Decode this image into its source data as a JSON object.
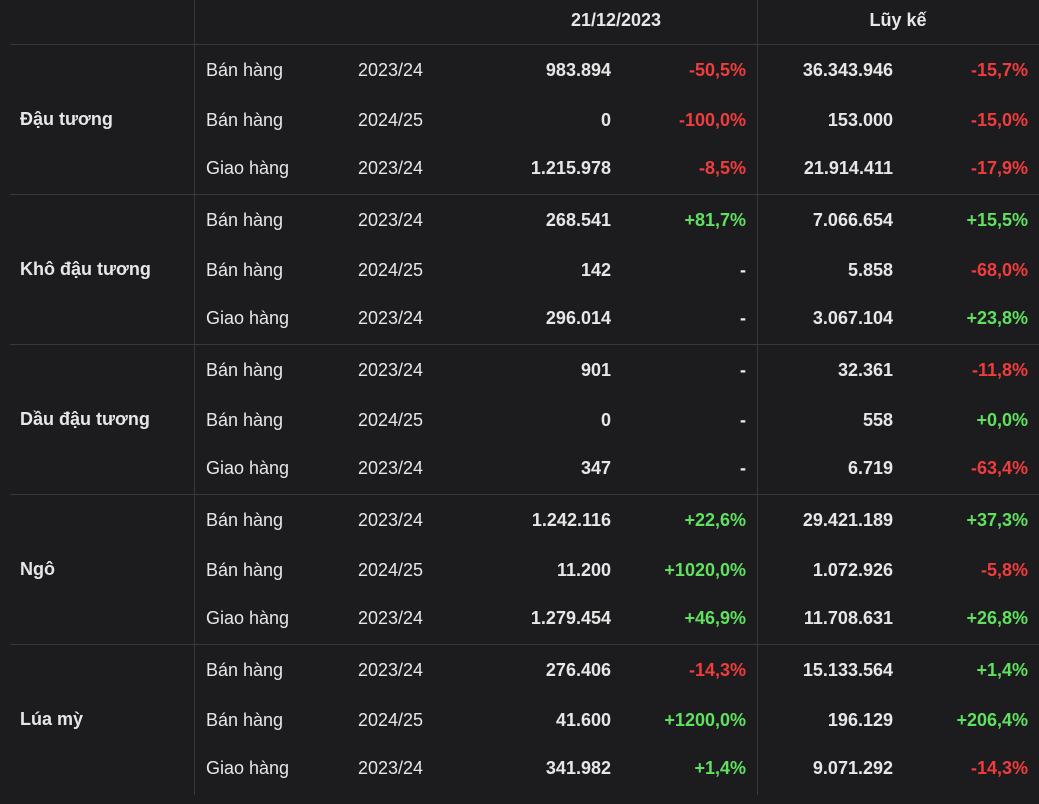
{
  "header": {
    "date": "21/12/2023",
    "cumulative": "Lũy kế"
  },
  "groups": [
    {
      "name": "Đậu tương",
      "rows": [
        [
          "Bán hàng",
          "2023/24",
          "983.894",
          "-50,5%",
          "36.343.946",
          "-15,7%"
        ],
        [
          "Bán hàng",
          "2024/25",
          "0",
          "-100,0%",
          "153.000",
          "-15,0%"
        ],
        [
          "Giao hàng",
          "2023/24",
          "1.215.978",
          "-8,5%",
          "21.914.411",
          "-17,9%"
        ]
      ]
    },
    {
      "name": "Khô đậu tương",
      "rows": [
        [
          "Bán hàng",
          "2023/24",
          "268.541",
          "+81,7%",
          "7.066.654",
          "+15,5%"
        ],
        [
          "Bán hàng",
          "2024/25",
          "142",
          "-",
          "5.858",
          "-68,0%"
        ],
        [
          "Giao hàng",
          "2023/24",
          "296.014",
          "-",
          "3.067.104",
          "+23,8%"
        ]
      ]
    },
    {
      "name": "Dầu đậu tương",
      "rows": [
        [
          "Bán hàng",
          "2023/24",
          "901",
          "-",
          "32.361",
          "-11,8%"
        ],
        [
          "Bán hàng",
          "2024/25",
          "0",
          "-",
          "558",
          "+0,0%"
        ],
        [
          "Giao hàng",
          "2023/24",
          "347",
          "-",
          "6.719",
          "-63,4%"
        ]
      ]
    },
    {
      "name": "Ngô",
      "rows": [
        [
          "Bán hàng",
          "2023/24",
          "1.242.116",
          "+22,6%",
          "29.421.189",
          "+37,3%"
        ],
        [
          "Bán hàng",
          "2024/25",
          "11.200",
          "+1020,0%",
          "1.072.926",
          "-5,8%"
        ],
        [
          "Giao hàng",
          "2023/24",
          "1.279.454",
          "+46,9%",
          "11.708.631",
          "+26,8%"
        ]
      ]
    },
    {
      "name": "Lúa mỳ",
      "rows": [
        [
          "Bán hàng",
          "2023/24",
          "276.406",
          "-14,3%",
          "15.133.564",
          "+1,4%"
        ],
        [
          "Bán hàng",
          "2024/25",
          "41.600",
          "+1200,0%",
          "196.129",
          "+206,4%"
        ],
        [
          "Giao hàng",
          "2023/24",
          "341.982",
          "+1,4%",
          "9.071.292",
          "-14,3%"
        ]
      ]
    }
  ]
}
